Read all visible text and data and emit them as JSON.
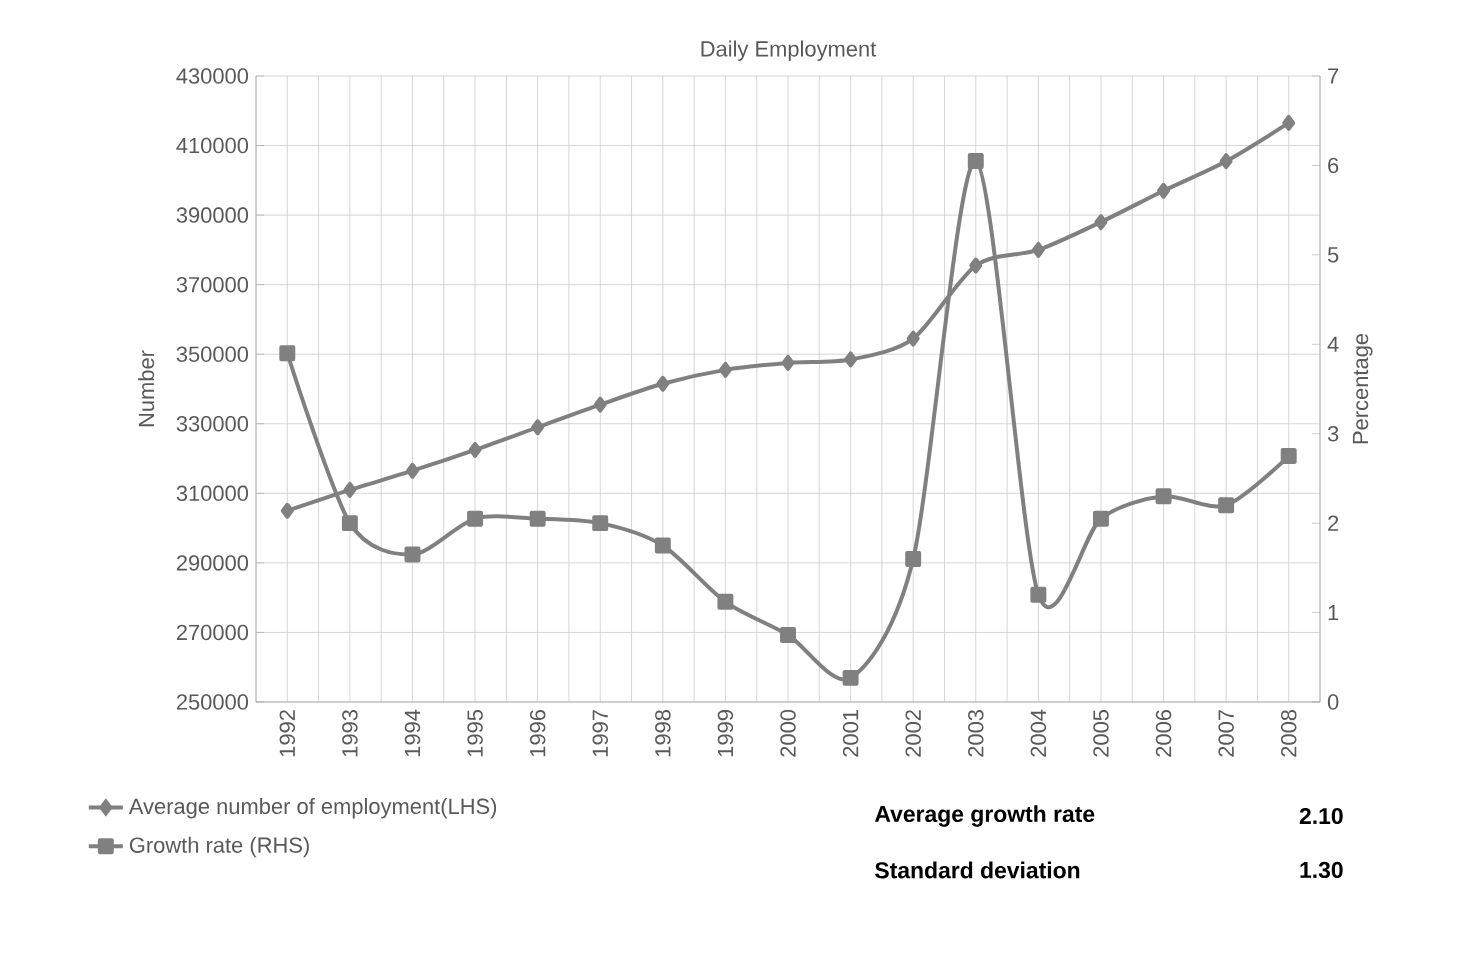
{
  "chart_data": {
    "type": "line",
    "title": "Daily Employment",
    "ylabel": "Number",
    "y2label": "Percentage",
    "categories": [
      "1992",
      "1993",
      "1994",
      "1995",
      "1996",
      "1997",
      "1998",
      "1999",
      "2000",
      "2001",
      "2002",
      "2003",
      "2004",
      "2005",
      "2006",
      "2007",
      "2008"
    ],
    "series": [
      {
        "name": "Average number of employment(LHS)",
        "color": "#808080",
        "marker": "diamond",
        "values": [
          305000,
          311000,
          316500,
          322500,
          329000,
          335500,
          341500,
          345500,
          347500,
          348500,
          354500,
          375500,
          380000,
          388000,
          397000,
          405500,
          416500
        ]
      },
      {
        "name": "Growth rate (RHS)",
        "color": "#808080",
        "marker": "square",
        "axis": "y2",
        "values": [
          3.9,
          2.0,
          1.65,
          2.05,
          2.05,
          2.0,
          1.75,
          1.12,
          0.75,
          0.27,
          1.6,
          6.05,
          1.2,
          2.05,
          2.3,
          2.2,
          2.75
        ]
      }
    ],
    "ylim": [
      250000,
      430000
    ],
    "yticks": [
      250000,
      270000,
      290000,
      310000,
      330000,
      350000,
      370000,
      390000,
      410000,
      430000
    ],
    "y2lim": [
      0,
      7
    ],
    "y2ticks": [
      0,
      1,
      2,
      3,
      4,
      5,
      6,
      7
    ],
    "grid": true,
    "legend": "bottom",
    "line_style": "solid",
    "annotations": [
      "**Average growth rate**",
      "**2.10**",
      "**Standard deviation**",
      "**1.30**"
    ]
  }
}
